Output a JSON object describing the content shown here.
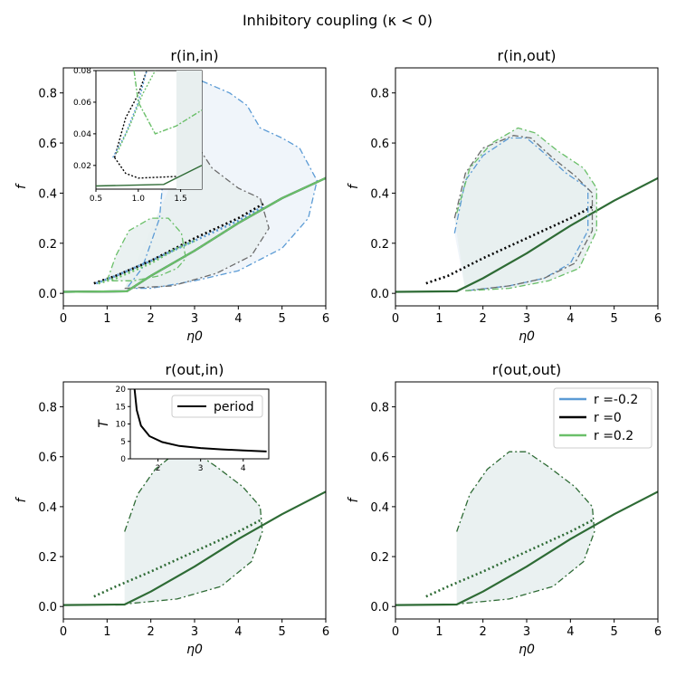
{
  "figure_title": "Inhibitory coupling (κ < 0)",
  "colors": {
    "neg": "#5b9bd5",
    "zero": "#000000",
    "pos": "#6abf69",
    "dark_green": "#2e6b35",
    "gray": "#6b6b6b",
    "shade": "#e8efef",
    "shade_blue": "#eef4fa"
  },
  "chart_data": [
    {
      "id": "in_in",
      "type": "line",
      "title": "r(in,in)",
      "xlabel": "η0",
      "ylabel": "f",
      "xlim": [
        0,
        6
      ],
      "ylim": [
        -0.05,
        0.9
      ],
      "xticks": [
        "0",
        "1",
        "2",
        "3",
        "4",
        "5",
        "6"
      ],
      "yticks": [
        "0.0",
        "0.2",
        "0.4",
        "0.6",
        "0.8"
      ],
      "series": [
        {
          "name": "r = -0.2",
          "role": "stable",
          "color": "neg",
          "points": [
            [
              0,
              0.006
            ],
            [
              1.45,
              0.008
            ],
            [
              2,
              0.07
            ],
            [
              3,
              0.17
            ],
            [
              4,
              0.28
            ],
            [
              5,
              0.38
            ],
            [
              6,
              0.46
            ]
          ]
        },
        {
          "name": "r = -0.2",
          "role": "unstable",
          "color": "neg",
          "points": [
            [
              0.75,
              0.04
            ],
            [
              1.2,
              0.07
            ],
            [
              2,
              0.13
            ],
            [
              3,
              0.21
            ],
            [
              4,
              0.29
            ],
            [
              4.6,
              0.35
            ]
          ]
        },
        {
          "name": "r = -0.2",
          "role": "cycle",
          "color": "neg",
          "points": [
            [
              1.45,
              0.02
            ],
            [
              2,
              0.02
            ],
            [
              3,
              0.05
            ],
            [
              4,
              0.09
            ],
            [
              5,
              0.18
            ],
            [
              5.6,
              0.3
            ],
            [
              5.8,
              0.45
            ],
            [
              5.4,
              0.58
            ],
            [
              5,
              0.62
            ],
            [
              4.5,
              0.66
            ],
            [
              4.2,
              0.75
            ],
            [
              3.8,
              0.8
            ],
            [
              3,
              0.86
            ],
            [
              2.6,
              0.86
            ],
            [
              2.4,
              0.8
            ],
            [
              2.3,
              0.5
            ],
            [
              2.2,
              0.3
            ],
            [
              1.8,
              0.1
            ],
            [
              1.45,
              0.02
            ]
          ]
        },
        {
          "name": "r = 0",
          "role": "stable",
          "color": "zero",
          "points": [
            [
              0,
              0.006
            ],
            [
              1.45,
              0.008
            ],
            [
              2,
              0.07
            ],
            [
              3,
              0.17
            ],
            [
              4,
              0.28
            ],
            [
              5,
              0.38
            ],
            [
              6,
              0.46
            ]
          ]
        },
        {
          "name": "r = 0",
          "role": "unstable",
          "color": "zero",
          "points": [
            [
              0.7,
              0.04
            ],
            [
              1.2,
              0.07
            ],
            [
              2,
              0.13
            ],
            [
              3,
              0.22
            ],
            [
              4,
              0.3
            ],
            [
              4.6,
              0.36
            ]
          ]
        },
        {
          "name": "r = 0",
          "role": "cycle",
          "color": "gray",
          "points": [
            [
              1.4,
              0.02
            ],
            [
              2.5,
              0.03
            ],
            [
              3.5,
              0.08
            ],
            [
              4.3,
              0.15
            ],
            [
              4.7,
              0.26
            ],
            [
              4.5,
              0.38
            ],
            [
              4,
              0.42
            ],
            [
              3.4,
              0.5
            ],
            [
              3.1,
              0.58
            ],
            [
              2.8,
              0.62
            ],
            [
              2.6,
              0.55
            ],
            [
              2.5,
              0.45
            ]
          ]
        },
        {
          "name": "r = 0.2",
          "role": "stable",
          "color": "pos",
          "points": [
            [
              0,
              0.006
            ],
            [
              1.45,
              0.008
            ],
            [
              2,
              0.07
            ],
            [
              3,
              0.17
            ],
            [
              4,
              0.28
            ],
            [
              5,
              0.38
            ],
            [
              6,
              0.46
            ]
          ]
        },
        {
          "name": "r = 0.2",
          "role": "unstable",
          "color": "pos",
          "points": [
            [
              0.8,
              0.04
            ],
            [
              1.2,
              0.06
            ],
            [
              2,
              0.12
            ],
            [
              2.6,
              0.18
            ],
            [
              3,
              0.21
            ]
          ]
        },
        {
          "name": "r = 0.2",
          "role": "cycle",
          "color": "pos",
          "points": [
            [
              1.0,
              0.05
            ],
            [
              1.2,
              0.15
            ],
            [
              1.5,
              0.25
            ],
            [
              2,
              0.3
            ],
            [
              2.4,
              0.3
            ],
            [
              2.7,
              0.24
            ],
            [
              2.8,
              0.14
            ],
            [
              2.6,
              0.1
            ],
            [
              2.2,
              0.07
            ],
            [
              1.6,
              0.05
            ],
            [
              1.0,
              0.05
            ]
          ]
        }
      ],
      "inset": {
        "xlim": [
          0.5,
          1.75
        ],
        "ylim": [
          0.005,
          0.08
        ],
        "xticks": [
          "0.5",
          "1.0",
          "1.5"
        ],
        "yticks": [
          "0.02",
          "0.04",
          "0.06",
          "0.08"
        ]
      }
    },
    {
      "id": "in_out",
      "type": "line",
      "title": "r(in,out)",
      "xlabel": "η0",
      "ylabel": "f",
      "xlim": [
        0,
        6
      ],
      "ylim": [
        -0.05,
        0.9
      ],
      "xticks": [
        "0",
        "1",
        "2",
        "3",
        "4",
        "5",
        "6"
      ],
      "yticks": [
        "0.0",
        "0.2",
        "0.4",
        "0.6",
        "0.8"
      ],
      "series": [
        {
          "name": "r = 0",
          "role": "stable",
          "color": "dark_green",
          "points": [
            [
              0,
              0.006
            ],
            [
              1.4,
              0.008
            ],
            [
              2,
              0.06
            ],
            [
              3,
              0.16
            ],
            [
              4,
              0.27
            ],
            [
              5,
              0.37
            ],
            [
              6,
              0.46
            ]
          ]
        },
        {
          "name": "r = 0",
          "role": "unstable",
          "color": "zero",
          "points": [
            [
              0.7,
              0.04
            ],
            [
              1.2,
              0.07
            ],
            [
              2,
              0.14
            ],
            [
              3,
              0.22
            ],
            [
              4,
              0.3
            ],
            [
              4.55,
              0.35
            ]
          ]
        },
        {
          "name": "r = -0.2",
          "role": "cycle",
          "color": "neg",
          "points": [
            [
              1.35,
              0.24
            ],
            [
              1.6,
              0.45
            ],
            [
              2,
              0.55
            ],
            [
              2.6,
              0.62
            ],
            [
              3,
              0.62
            ],
            [
              3.4,
              0.56
            ],
            [
              3.9,
              0.48
            ],
            [
              4.4,
              0.42
            ],
            [
              4.4,
              0.25
            ],
            [
              4.0,
              0.12
            ],
            [
              3.4,
              0.06
            ],
            [
              2.6,
              0.03
            ],
            [
              1.6,
              0.01
            ]
          ]
        },
        {
          "name": "r = 0",
          "role": "cycle",
          "color": "gray",
          "points": [
            [
              1.35,
              0.3
            ],
            [
              1.6,
              0.48
            ],
            [
              2,
              0.58
            ],
            [
              2.7,
              0.63
            ],
            [
              3.1,
              0.62
            ],
            [
              3.6,
              0.54
            ],
            [
              4.1,
              0.47
            ],
            [
              4.5,
              0.4
            ],
            [
              4.5,
              0.25
            ],
            [
              4.1,
              0.12
            ],
            [
              3.4,
              0.06
            ],
            [
              2.6,
              0.03
            ],
            [
              1.6,
              0.01
            ]
          ]
        },
        {
          "name": "r = 0.2",
          "role": "cycle",
          "color": "pos",
          "points": [
            [
              1.4,
              0.32
            ],
            [
              1.7,
              0.5
            ],
            [
              2.2,
              0.6
            ],
            [
              2.8,
              0.66
            ],
            [
              3.2,
              0.64
            ],
            [
              3.7,
              0.57
            ],
            [
              4.3,
              0.5
            ],
            [
              4.6,
              0.42
            ],
            [
              4.6,
              0.25
            ],
            [
              4.2,
              0.1
            ],
            [
              3.5,
              0.05
            ],
            [
              2.6,
              0.02
            ],
            [
              1.6,
              0.01
            ]
          ]
        }
      ]
    },
    {
      "id": "out_in",
      "type": "line",
      "title": "r(out,in)",
      "xlabel": "η0",
      "ylabel": "f",
      "xlim": [
        0,
        6
      ],
      "ylim": [
        -0.05,
        0.9
      ],
      "xticks": [
        "0",
        "1",
        "2",
        "3",
        "4",
        "5",
        "6"
      ],
      "yticks": [
        "0.0",
        "0.2",
        "0.4",
        "0.6",
        "0.8"
      ],
      "series": [
        {
          "name": "r = 0",
          "role": "stable",
          "color": "dark_green",
          "points": [
            [
              0,
              0.006
            ],
            [
              1.4,
              0.008
            ],
            [
              2,
              0.06
            ],
            [
              3,
              0.16
            ],
            [
              4,
              0.27
            ],
            [
              5,
              0.37
            ],
            [
              6,
              0.46
            ]
          ]
        },
        {
          "name": "r = 0",
          "role": "unstable",
          "color": "dark_green",
          "points": [
            [
              0.7,
              0.04
            ],
            [
              1.2,
              0.08
            ],
            [
              2,
              0.14
            ],
            [
              3,
              0.22
            ],
            [
              4,
              0.3
            ],
            [
              4.55,
              0.35
            ]
          ]
        },
        {
          "name": "r = 0",
          "role": "cycle",
          "color": "dark_green",
          "points": [
            [
              1.4,
              0.3
            ],
            [
              1.7,
              0.45
            ],
            [
              2.1,
              0.55
            ],
            [
              2.6,
              0.62
            ],
            [
              3.0,
              0.62
            ],
            [
              3.5,
              0.56
            ],
            [
              4.1,
              0.48
            ],
            [
              4.5,
              0.4
            ],
            [
              4.55,
              0.3
            ],
            [
              4.3,
              0.18
            ],
            [
              3.6,
              0.08
            ],
            [
              2.6,
              0.03
            ],
            [
              1.4,
              0.01
            ]
          ]
        }
      ],
      "inset": {
        "type": "line",
        "xlim": [
          1.35,
          4.6
        ],
        "ylim": [
          0,
          20
        ],
        "xticks": [
          "2",
          "3",
          "4"
        ],
        "yticks": [
          "0",
          "5",
          "10",
          "15",
          "20"
        ],
        "ylabel": "T",
        "legend": "period",
        "points": [
          [
            1.45,
            20
          ],
          [
            1.5,
            14
          ],
          [
            1.6,
            9.5
          ],
          [
            1.8,
            6.5
          ],
          [
            2.1,
            4.8
          ],
          [
            2.5,
            3.7
          ],
          [
            3,
            3.1
          ],
          [
            3.5,
            2.7
          ],
          [
            4,
            2.4
          ],
          [
            4.55,
            2.1
          ]
        ]
      }
    },
    {
      "id": "out_out",
      "type": "line",
      "title": "r(out,out)",
      "xlabel": "η0",
      "ylabel": "f",
      "xlim": [
        0,
        6
      ],
      "ylim": [
        -0.05,
        0.9
      ],
      "xticks": [
        "0",
        "1",
        "2",
        "3",
        "4",
        "5",
        "6"
      ],
      "yticks": [
        "0.0",
        "0.2",
        "0.4",
        "0.6",
        "0.8"
      ],
      "series": [
        {
          "name": "r = 0",
          "role": "stable",
          "color": "dark_green",
          "points": [
            [
              0,
              0.006
            ],
            [
              1.4,
              0.008
            ],
            [
              2,
              0.06
            ],
            [
              3,
              0.16
            ],
            [
              4,
              0.27
            ],
            [
              5,
              0.37
            ],
            [
              6,
              0.46
            ]
          ]
        },
        {
          "name": "r = 0",
          "role": "unstable",
          "color": "dark_green",
          "points": [
            [
              0.7,
              0.04
            ],
            [
              1.2,
              0.08
            ],
            [
              2,
              0.14
            ],
            [
              3,
              0.22
            ],
            [
              4,
              0.3
            ],
            [
              4.55,
              0.35
            ]
          ]
        },
        {
          "name": "r = 0",
          "role": "cycle",
          "color": "dark_green",
          "points": [
            [
              1.4,
              0.3
            ],
            [
              1.7,
              0.45
            ],
            [
              2.1,
              0.55
            ],
            [
              2.6,
              0.62
            ],
            [
              3.0,
              0.62
            ],
            [
              3.5,
              0.56
            ],
            [
              4.1,
              0.48
            ],
            [
              4.5,
              0.4
            ],
            [
              4.55,
              0.3
            ],
            [
              4.3,
              0.18
            ],
            [
              3.6,
              0.08
            ],
            [
              2.6,
              0.03
            ],
            [
              1.4,
              0.01
            ]
          ]
        }
      ],
      "legend": [
        {
          "label": "r =-0.2",
          "color": "neg"
        },
        {
          "label": "r =0",
          "color": "zero"
        },
        {
          "label": "r =0.2",
          "color": "pos"
        }
      ]
    }
  ]
}
